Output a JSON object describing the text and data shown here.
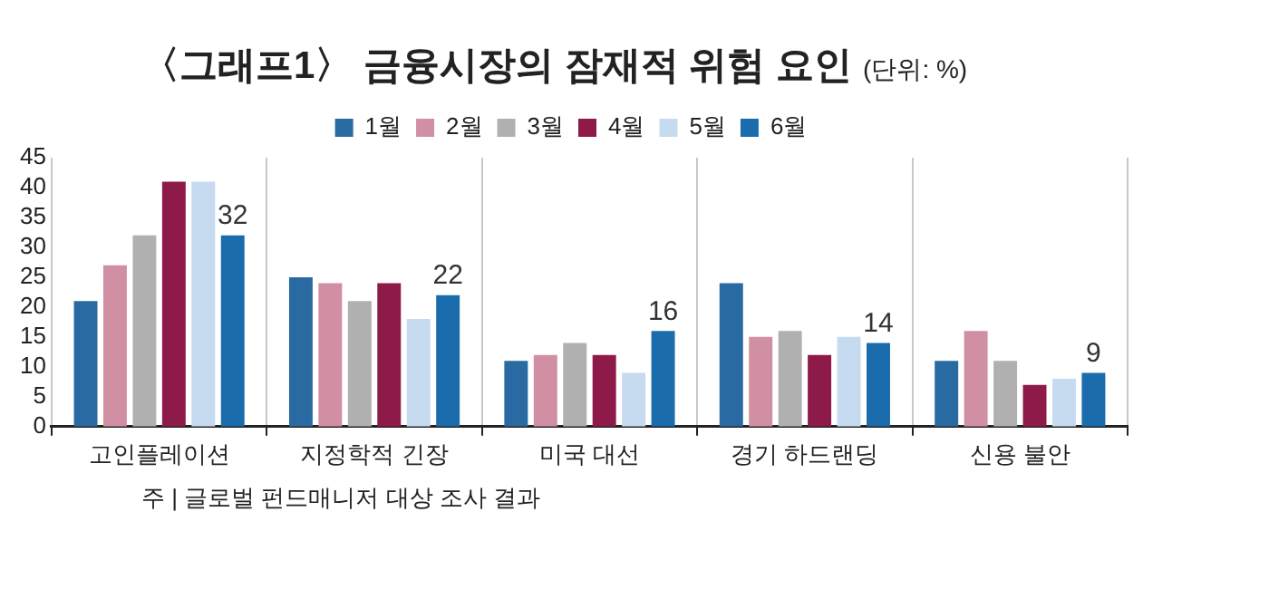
{
  "chart_data": {
    "type": "bar",
    "title": "〈그래프1〉 금융시장의 잠재적 위험 요인",
    "subtitle": "(단위: %)",
    "annotations": [
      "주 | 글로벌 펀드매니저 대상 조사 결과"
    ],
    "categories": [
      "고인플레이션",
      "지정학적 긴장",
      "미국 대선",
      "경기 하드랜딩",
      "신용 불안"
    ],
    "series": [
      {
        "name": "1월",
        "color": "#2a6aa3",
        "values": [
          21,
          25,
          11,
          24,
          11
        ]
      },
      {
        "name": "2월",
        "color": "#d08fa2",
        "values": [
          27,
          24,
          12,
          15,
          16
        ]
      },
      {
        "name": "3월",
        "color": "#b0b0b0",
        "values": [
          32,
          21,
          14,
          16,
          11
        ]
      },
      {
        "name": "4월",
        "color": "#8e1a4a",
        "values": [
          41,
          24,
          12,
          12,
          7
        ]
      },
      {
        "name": "5월",
        "color": "#c6daf0",
        "values": [
          41,
          18,
          9,
          15,
          8
        ]
      },
      {
        "name": "6월",
        "color": "#1a6cad",
        "values": [
          32,
          22,
          16,
          14,
          9
        ],
        "value_labels": [
          "32",
          "22",
          "16",
          "14",
          "9"
        ]
      }
    ],
    "ylim": [
      0,
      45
    ],
    "yticks": [
      0,
      5,
      10,
      15,
      20,
      25,
      30,
      35,
      40,
      45
    ],
    "grid": "x",
    "legend": "top"
  }
}
